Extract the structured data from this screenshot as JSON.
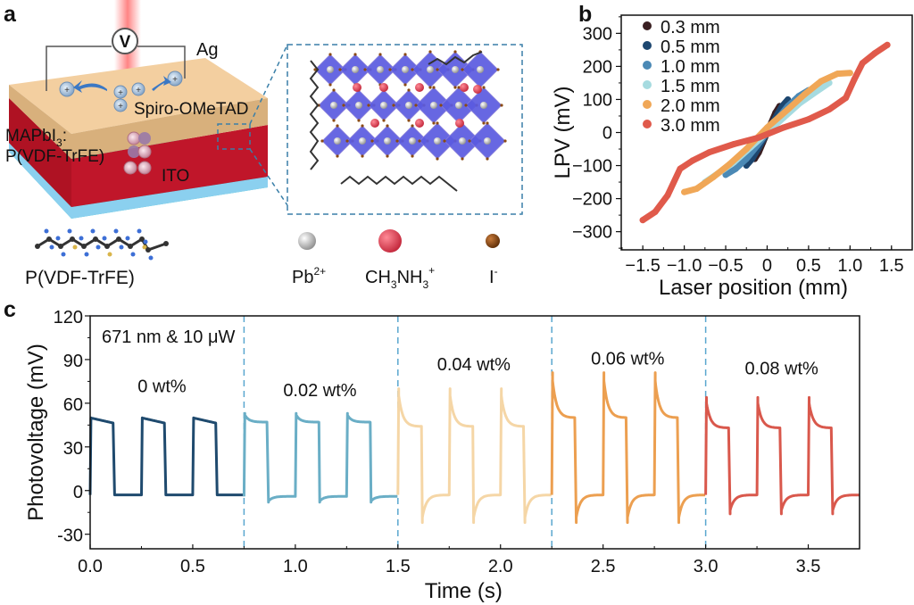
{
  "figure": {
    "panels": {
      "a": {
        "letter": "a",
        "device_labels": {
          "top_contact": "Ag",
          "htl": "Spiro-OMeTAD",
          "absorber_line1": "MAPbI",
          "absorber_sub": "3",
          "absorber_colon": ":",
          "absorber_line2": "P(VDF-TrFE)",
          "bottom_contact": "ITO",
          "voltmeter_symbol": "V"
        },
        "molecule_label": "P(VDF-TrFE)",
        "ion_legend": [
          {
            "name": "Pb",
            "sup": "2+",
            "sub": "",
            "color": "#d9d9d9"
          },
          {
            "name": "CH",
            "sub": "3",
            "mid": "NH",
            "sub2": "3",
            "sup": "+",
            "color": "#e0485a"
          },
          {
            "name": "I",
            "sup": "-",
            "sub": "",
            "color": "#8a4a14"
          }
        ],
        "colors": {
          "spiro": "#e6c38f",
          "perovskite": "#c0162a",
          "ito_top": "#7ec8ef",
          "ito_side": "#2ec4c4",
          "octahedra": "#5b5be0",
          "callout": "#3a7fa8"
        }
      },
      "b": {
        "letter": "b"
      },
      "c": {
        "letter": "c",
        "annotation": "671 nm & 10 μW"
      }
    }
  },
  "chart_data": [
    {
      "id": "b",
      "type": "scatter",
      "title": "",
      "xlabel": "Laser position (mm)",
      "ylabel": "LPV (mV)",
      "xlim": [
        -1.76,
        1.75
      ],
      "ylim": [
        -355,
        355
      ],
      "xticks": [
        -1.5,
        -1.0,
        -0.5,
        0,
        0.5,
        1.0,
        1.5
      ],
      "xtick_labels": [
        "−1.5",
        "−1.0",
        "−0.5",
        "0",
        "0.5",
        "1.0",
        "1.5"
      ],
      "yticks": [
        -300,
        -200,
        -100,
        0,
        100,
        200,
        300
      ],
      "ytick_labels": [
        "−300",
        "−200",
        "−100",
        "0",
        "100",
        "200",
        "300"
      ],
      "legend_position": "top-left",
      "series": [
        {
          "name": "0.3 mm",
          "color": "#3a1f22",
          "x": [
            -0.15,
            -0.1,
            -0.05,
            0,
            0.05,
            0.1,
            0.15
          ],
          "y": [
            -80,
            -60,
            -30,
            0,
            30,
            60,
            80
          ]
        },
        {
          "name": "0.5 mm",
          "color": "#1d4770",
          "x": [
            -0.25,
            -0.18,
            -0.1,
            0,
            0.1,
            0.18,
            0.25
          ],
          "y": [
            -100,
            -80,
            -45,
            0,
            45,
            80,
            100
          ]
        },
        {
          "name": "1.0 mm",
          "color": "#4b89b5",
          "x": [
            -0.5,
            -0.38,
            -0.25,
            -0.12,
            0,
            0.12,
            0.25,
            0.38,
            0.5
          ],
          "y": [
            -128,
            -110,
            -80,
            -40,
            0,
            40,
            80,
            110,
            128
          ]
        },
        {
          "name": "1.5 mm",
          "color": "#a6dbe0",
          "x": [
            -0.75,
            -0.6,
            -0.4,
            -0.2,
            0,
            0.2,
            0.4,
            0.6,
            0.75
          ],
          "y": [
            -150,
            -125,
            -90,
            -45,
            0,
            45,
            90,
            125,
            150
          ]
        },
        {
          "name": "2.0 mm",
          "color": "#f0a757",
          "x": [
            -1.0,
            -0.85,
            -0.65,
            -0.45,
            -0.25,
            0,
            0.25,
            0.45,
            0.65,
            0.85,
            1.0
          ],
          "y": [
            -180,
            -170,
            -135,
            -95,
            -50,
            15,
            70,
            115,
            155,
            178,
            180
          ]
        },
        {
          "name": "3.0 mm",
          "color": "#e05a4b",
          "x": [
            -1.5,
            -1.35,
            -1.2,
            -1.05,
            -0.9,
            -0.7,
            -0.4,
            -0.1,
            0.2,
            0.5,
            0.75,
            0.95,
            1.05,
            1.15,
            1.3,
            1.45
          ],
          "y": [
            -265,
            -240,
            -190,
            -110,
            -85,
            -60,
            -35,
            -15,
            15,
            40,
            70,
            105,
            160,
            210,
            240,
            265
          ]
        }
      ]
    },
    {
      "id": "c",
      "type": "line",
      "title": "",
      "xlabel": "Time (s)",
      "ylabel": "Photovoltage (mV)",
      "xlim": [
        0,
        3.75
      ],
      "ylim": [
        -40,
        120
      ],
      "xticks": [
        0.0,
        0.5,
        1.0,
        1.5,
        2.0,
        2.5,
        3.0,
        3.5
      ],
      "xtick_labels": [
        "0.0",
        "0.5",
        "1.0",
        "1.5",
        "2.0",
        "2.5",
        "3.0",
        "3.5"
      ],
      "yticks": [
        -30,
        0,
        30,
        60,
        90,
        120
      ],
      "ytick_labels": [
        "-30",
        "0",
        "30",
        "60",
        "90",
        "120"
      ],
      "separators": [
        0.75,
        1.5,
        2.25,
        3.0
      ],
      "period_s": 0.25,
      "series": [
        {
          "name": "0 wt%",
          "color": "#1f4a6e",
          "start": 0.0,
          "end": 0.75,
          "on_level": 50,
          "plateau": 46,
          "off_level": -3,
          "overshoot_on": 0,
          "overshoot_off": 0,
          "label_pos": [
            0.35,
            72
          ]
        },
        {
          "name": "0.02 wt%",
          "color": "#6aaec6",
          "start": 0.75,
          "end": 1.5,
          "on_level": 52,
          "plateau": 47,
          "off_level": -4,
          "overshoot_on": 53,
          "overshoot_off": -8,
          "label_pos": [
            1.12,
            69
          ]
        },
        {
          "name": "0.04 wt%",
          "color": "#f5d6a6",
          "start": 1.5,
          "end": 2.25,
          "on_level": 70,
          "plateau": 44,
          "off_level": -3,
          "overshoot_on": 70,
          "overshoot_off": -22,
          "label_pos": [
            1.87,
            87
          ]
        },
        {
          "name": "0.06 wt%",
          "color": "#ec9f50",
          "start": 2.25,
          "end": 3.0,
          "on_level": 80,
          "plateau": 50,
          "off_level": -3,
          "overshoot_on": 81,
          "overshoot_off": -22,
          "label_pos": [
            2.62,
            91
          ]
        },
        {
          "name": "0.08 wt%",
          "color": "#d9584c",
          "start": 3.0,
          "end": 3.75,
          "on_level": 64,
          "plateau": 43,
          "off_level": -3,
          "overshoot_on": 64,
          "overshoot_off": -16,
          "label_pos": [
            3.37,
            84
          ]
        }
      ]
    }
  ]
}
